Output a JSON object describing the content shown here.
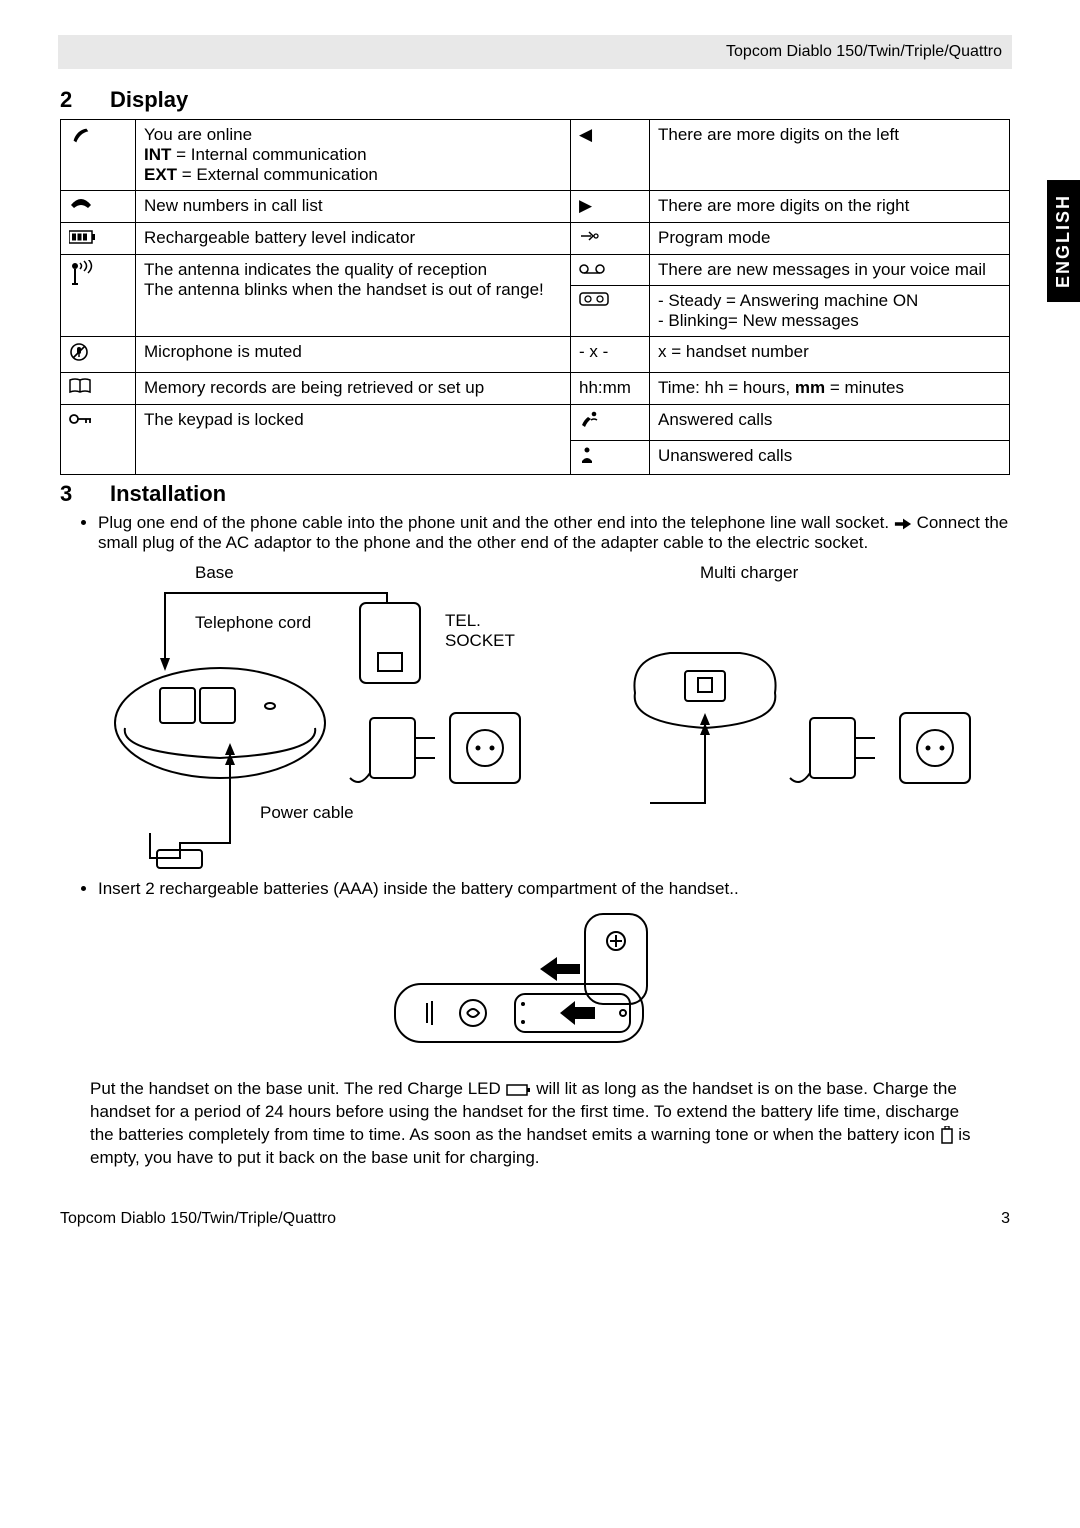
{
  "header": {
    "product": "Topcom Diablo 150/Twin/Triple/Quattro"
  },
  "side_tab": "ENGLISH",
  "section_display": {
    "num": "2",
    "title": "Display"
  },
  "display_table": {
    "left": [
      {
        "icon": "handset-lifted-icon",
        "html": "You are online<br><span class='bold'>INT</span> = Internal communication<br><span class='bold'>EXT</span> = External communication"
      },
      {
        "icon": "phone-icon",
        "text": "New numbers in call list"
      },
      {
        "icon": "battery-icon",
        "text": "Rechargeable battery level indicator"
      },
      {
        "icon": "antenna-icon",
        "html": "The antenna indicates the quality of reception<br>The antenna blinks when the handset is out of range!"
      },
      {
        "icon": "mic-muted-icon",
        "text": "Microphone is muted"
      },
      {
        "icon": "book-icon",
        "text": "Memory records are being retrieved or set up"
      },
      {
        "icon": "key-icon",
        "text": "The keypad is locked"
      }
    ],
    "right": [
      {
        "icon": "arrow-left-icon",
        "glyph": "◀",
        "text": "There are more digits on the left"
      },
      {
        "icon": "arrow-right-icon",
        "glyph": "▶",
        "text": "There are more digits on the right"
      },
      {
        "icon": "program-icon",
        "glyph": "↣",
        "text": "Program mode"
      },
      {
        "icon": "voicemail-icon",
        "html": "There are new messages in your voice mail"
      },
      {
        "icon": "am-icon",
        "html": "- Steady = Answering machine ON<br>- Blinking= New messages"
      },
      {
        "icon": "x-icon",
        "glyph": "- x -",
        "text": "x = handset number"
      },
      {
        "icon": "time-icon",
        "glyph": "hh:mm",
        "html": "Time: hh = hours, <span class='bold'>mm</span> = minutes"
      },
      {
        "icon": "answered-icon",
        "text": "Answered calls"
      },
      {
        "icon": "unanswered-icon",
        "text": "Unanswered calls"
      }
    ]
  },
  "section_install": {
    "num": "3",
    "title": "Installation"
  },
  "install_bullets": {
    "b1_part1": "Plug one end of the phone cable into the phone unit and the other end into the telephone line wall socket. ",
    "b1_part2": " Connect the small plug of the AC adaptor to the phone and the other end of the adapter cable to the electric socket.",
    "b2": "Insert 2 rechargeable batteries (AAA) inside the battery compartment of the handset.."
  },
  "diagram_labels": {
    "base": "Base",
    "multi": "Multi charger",
    "tel_cord": "Telephone cord",
    "tel_socket1": "TEL.",
    "tel_socket2": "SOCKET",
    "power": "Power cable"
  },
  "body_text": {
    "p1_a": "Put the handset on the base unit. The red Charge LED ",
    "p1_b": " will lit as long as the handset is on the base. Charge the handset for a period of 24 hours before using the handset for the first time. To extend the battery life time, discharge the batteries completely from time to time. As soon as the handset emits a warning tone or when the battery icon ",
    "p1_c": " is empty, you have to put it back on the base unit for charging."
  },
  "footer": {
    "left": "Topcom Diablo 150/Twin/Triple/Quattro",
    "page": "3"
  }
}
